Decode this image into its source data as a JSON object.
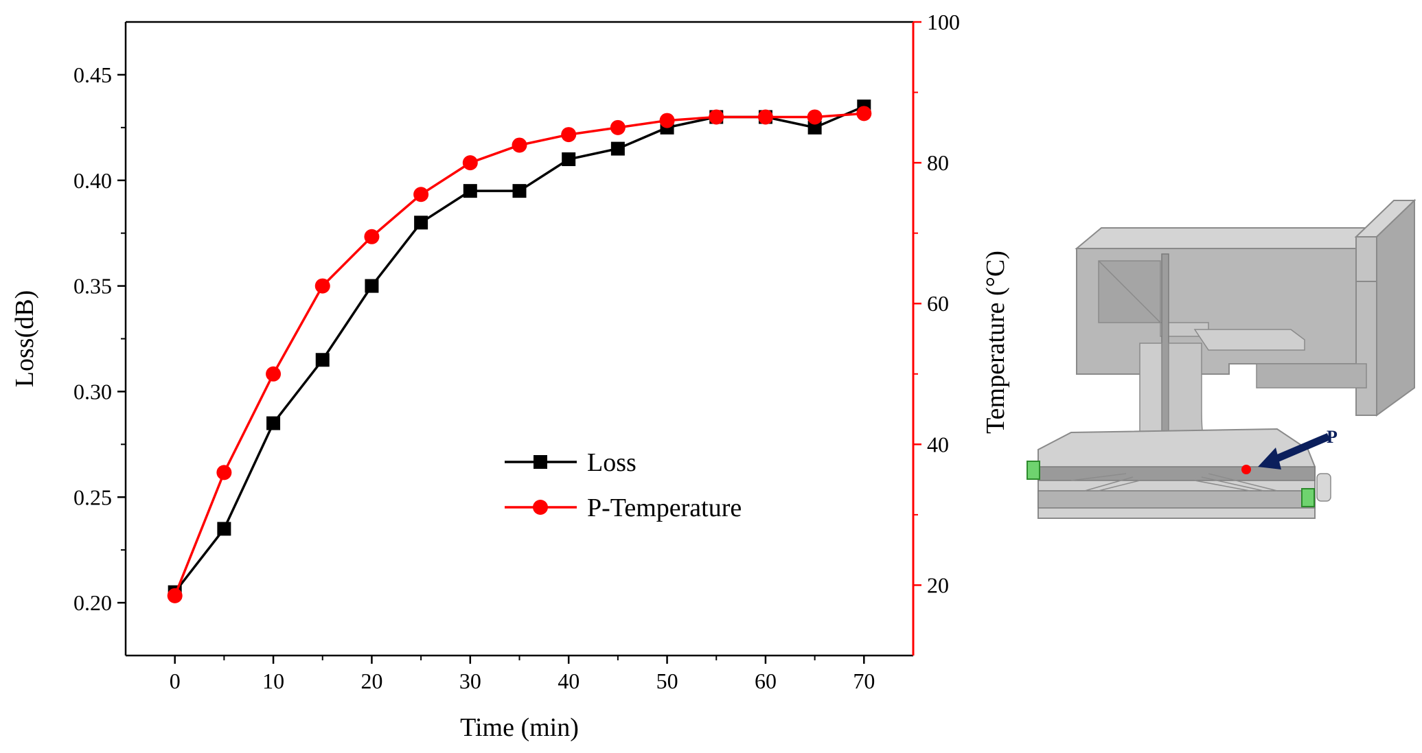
{
  "chart_data": {
    "type": "line",
    "xlabel": "Time (min)",
    "ylabel_left": "Loss(dB)",
    "ylabel_right": "Temperature (°C)",
    "xlim": [
      -5,
      75
    ],
    "ylim_left": [
      0.175,
      0.475
    ],
    "ylim_right": [
      10,
      100
    ],
    "x_ticks": [
      0,
      10,
      20,
      30,
      40,
      50,
      60,
      70
    ],
    "y_left_ticks": [
      "0.20",
      "0.25",
      "0.30",
      "0.35",
      "0.40",
      "0.45"
    ],
    "y_right_ticks": [
      20,
      40,
      60,
      80,
      100
    ],
    "x": [
      0,
      5,
      10,
      15,
      20,
      25,
      30,
      35,
      40,
      45,
      50,
      55,
      60,
      65,
      70
    ],
    "series": [
      {
        "name": "Loss",
        "axis": "left",
        "marker": "square",
        "color": "#000000",
        "values": [
          0.205,
          0.235,
          0.285,
          0.315,
          0.35,
          0.38,
          0.395,
          0.395,
          0.41,
          0.415,
          0.425,
          0.43,
          0.43,
          0.425,
          0.435
        ]
      },
      {
        "name": "P-Temperature",
        "axis": "right",
        "marker": "circle",
        "color": "#ff0000",
        "values": [
          18.5,
          36,
          50,
          62.5,
          69.5,
          75.5,
          80,
          82.5,
          84,
          85,
          86,
          86.5,
          86.5,
          86.5,
          87
        ]
      }
    ],
    "legend": "center-right"
  },
  "figure": {
    "point_label": "P",
    "arrow_color": "#0b1f5c",
    "point_color": "#ff0000"
  }
}
